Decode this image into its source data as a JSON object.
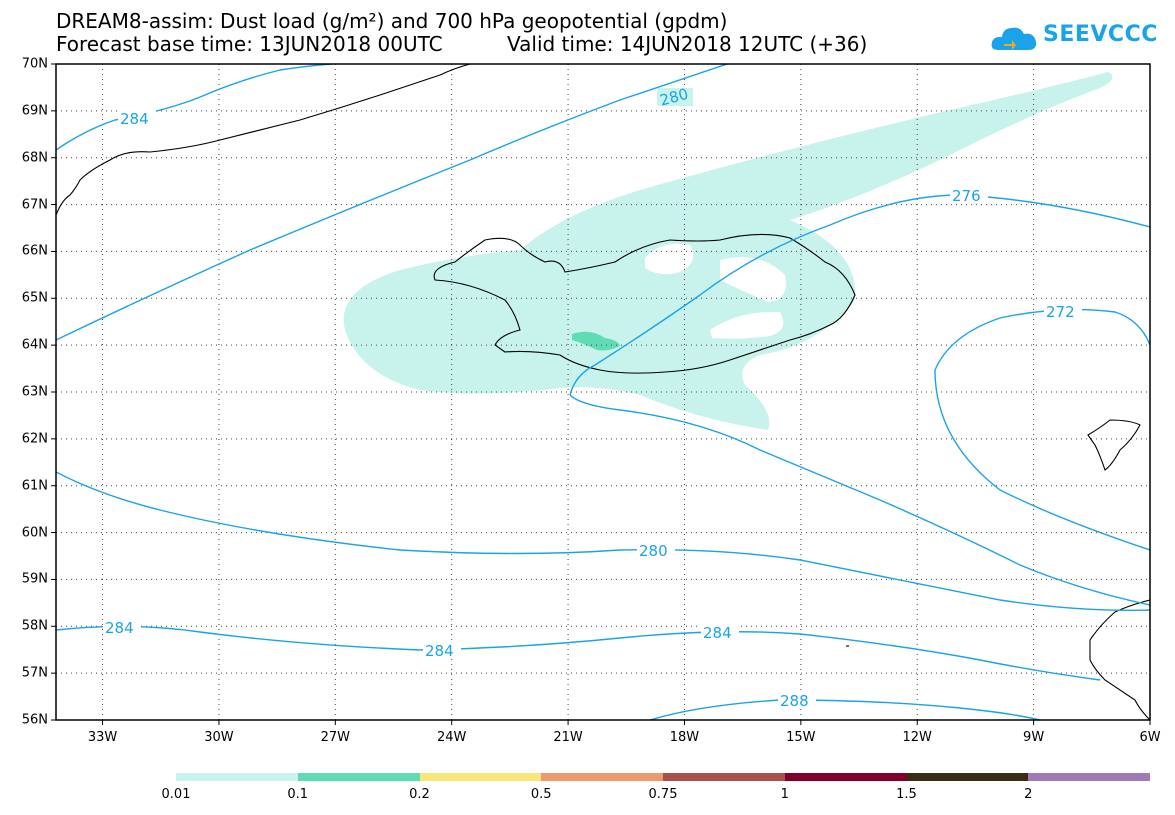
{
  "header": {
    "title_line1": "DREAM8-assim: Dust load (g/m²) and 700 hPa geopotential (gpdm)",
    "title_line2a": "Forecast base time: 13JUN2018 00UTC",
    "title_line2b": "Valid time: 14JUN2018 12UTC (+36)"
  },
  "logo": {
    "text": "SEEVCCC",
    "icon": "cloud-icon",
    "color": "#1aa3e8"
  },
  "map": {
    "region": {
      "lon_min": -34.2,
      "lon_max": -6,
      "lat_min": 56,
      "lat_max": 70
    },
    "lat_labels": [
      "70N",
      "69N",
      "68N",
      "67N",
      "66N",
      "65N",
      "64N",
      "63N",
      "62N",
      "61N",
      "60N",
      "59N",
      "58N",
      "57N",
      "56N"
    ],
    "lon_labels": [
      "33W",
      "30W",
      "27W",
      "24W",
      "21W",
      "18W",
      "15W",
      "12W",
      "9W",
      "6W"
    ],
    "contour_color": "#1aa3e8",
    "contour_labels": {
      "c284_nw": "284",
      "c280_n": "280",
      "c276": "276",
      "c272": "272",
      "c280_s": "280",
      "c284_sw": "284",
      "c284_s": "284",
      "c284_se": "284",
      "c288": "288"
    },
    "dust_colors": {
      "low": "#c8f2ec",
      "mid": "#5fdcb4"
    }
  },
  "legend": {
    "colors": [
      "#c8f2ec",
      "#5fdcb4",
      "#f7e67a",
      "#ec9a6c",
      "#a8504a",
      "#80002a",
      "#3d2a14",
      "#a07ab4"
    ],
    "labels": [
      "0.01",
      "0.1",
      "0.2",
      "0.5",
      "0.75",
      "1",
      "1.5",
      "2"
    ]
  }
}
